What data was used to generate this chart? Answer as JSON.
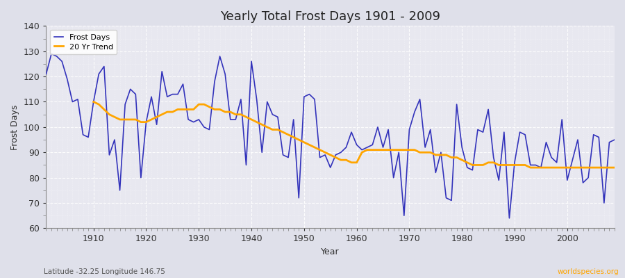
{
  "title": "Yearly Total Frost Days 1901 - 2009",
  "xlabel": "Year",
  "ylabel": "Frost Days",
  "subtitle_left": "Latitude -32.25 Longitude 146.75",
  "subtitle_right": "worldspecies.org",
  "ylim": [
    60,
    140
  ],
  "xlim": [
    1901,
    2009
  ],
  "yticks": [
    60,
    70,
    80,
    90,
    100,
    110,
    120,
    130,
    140
  ],
  "xticks": [
    1910,
    1920,
    1930,
    1940,
    1950,
    1960,
    1970,
    1980,
    1990,
    2000
  ],
  "line_color": "#3333bb",
  "trend_color": "#FFA500",
  "bg_color": "#dfe0ea",
  "plot_bg_color": "#e8e8f0",
  "grid_color": "#ffffff",
  "years": [
    1901,
    1902,
    1903,
    1904,
    1905,
    1906,
    1907,
    1908,
    1909,
    1910,
    1911,
    1912,
    1913,
    1914,
    1915,
    1916,
    1917,
    1918,
    1919,
    1920,
    1921,
    1922,
    1923,
    1924,
    1925,
    1926,
    1927,
    1928,
    1929,
    1930,
    1931,
    1932,
    1933,
    1934,
    1935,
    1936,
    1937,
    1938,
    1939,
    1940,
    1941,
    1942,
    1943,
    1944,
    1945,
    1946,
    1947,
    1948,
    1949,
    1950,
    1951,
    1952,
    1953,
    1954,
    1955,
    1956,
    1957,
    1958,
    1959,
    1960,
    1961,
    1962,
    1963,
    1964,
    1965,
    1966,
    1967,
    1968,
    1969,
    1970,
    1971,
    1972,
    1973,
    1974,
    1975,
    1976,
    1977,
    1978,
    1979,
    1980,
    1981,
    1982,
    1983,
    1984,
    1985,
    1986,
    1987,
    1988,
    1989,
    1990,
    1991,
    1992,
    1993,
    1994,
    1995,
    1996,
    1997,
    1998,
    1999,
    2000,
    2001,
    2002,
    2003,
    2004,
    2005,
    2006,
    2007,
    2008,
    2009
  ],
  "frost_days": [
    121,
    129,
    128,
    126,
    119,
    110,
    111,
    97,
    96,
    110,
    121,
    124,
    89,
    95,
    75,
    109,
    115,
    113,
    80,
    102,
    112,
    101,
    122,
    112,
    113,
    113,
    117,
    103,
    102,
    103,
    100,
    99,
    118,
    128,
    121,
    103,
    103,
    111,
    85,
    126,
    111,
    90,
    110,
    105,
    104,
    89,
    88,
    103,
    72,
    112,
    113,
    111,
    88,
    89,
    84,
    89,
    90,
    92,
    98,
    93,
    91,
    92,
    93,
    100,
    92,
    99,
    80,
    90,
    65,
    99,
    106,
    111,
    92,
    99,
    82,
    90,
    72,
    71,
    109,
    92,
    84,
    83,
    99,
    98,
    107,
    88,
    79,
    98,
    64,
    86,
    98,
    97,
    85,
    85,
    84,
    94,
    88,
    86,
    103,
    79,
    87,
    95,
    78,
    80,
    97,
    96,
    70,
    94,
    95
  ],
  "trend_values": [
    null,
    null,
    null,
    null,
    null,
    null,
    null,
    null,
    null,
    110,
    109,
    107,
    105,
    104,
    103,
    103,
    103,
    103,
    102,
    102,
    103,
    104,
    105,
    106,
    106,
    107,
    107,
    107,
    107,
    109,
    109,
    108,
    107,
    107,
    106,
    106,
    105,
    105,
    104,
    103,
    102,
    101,
    100,
    99,
    99,
    98,
    97,
    96,
    95,
    94,
    93,
    92,
    91,
    90,
    89,
    88,
    87,
    87,
    86,
    86,
    90,
    91,
    91,
    91,
    91,
    91,
    91,
    91,
    91,
    91,
    91,
    90,
    90,
    90,
    89,
    89,
    89,
    88,
    88,
    87,
    86,
    85,
    85,
    85,
    86,
    86,
    85,
    85,
    85,
    85,
    85,
    85,
    84,
    84,
    84,
    84,
    84,
    84,
    84,
    84,
    84,
    84,
    84,
    84,
    84,
    84,
    84,
    84,
    84
  ]
}
